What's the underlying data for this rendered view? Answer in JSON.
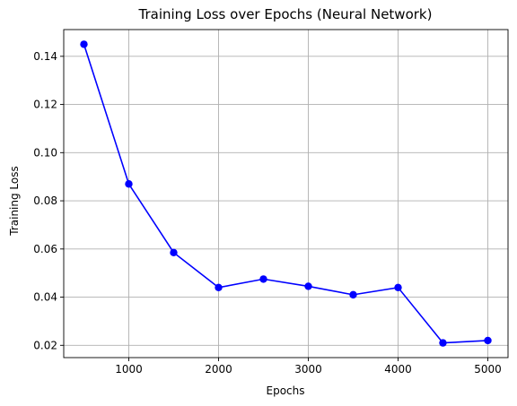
{
  "chart_data": {
    "type": "line",
    "title": "Training Loss over Epochs (Neural Network)",
    "xlabel": "Epochs",
    "ylabel": "Training Loss",
    "x": [
      500,
      1000,
      1500,
      2000,
      2500,
      3000,
      3500,
      4000,
      4500,
      5000
    ],
    "series": [
      {
        "values": [
          0.145,
          0.087,
          0.0585,
          0.044,
          0.0475,
          0.0445,
          0.041,
          0.044,
          0.021,
          0.022
        ],
        "color": "#0000ff",
        "marker": "circle"
      }
    ],
    "xlim": [
      275,
      5225
    ],
    "ylim": [
      0.0149,
      0.1511
    ],
    "xticks": [
      1000,
      2000,
      3000,
      4000,
      5000
    ],
    "xtick_labels": [
      "1000",
      "2000",
      "3000",
      "4000",
      "5000"
    ],
    "yticks": [
      0.02,
      0.04,
      0.06,
      0.08,
      0.1,
      0.12,
      0.14
    ],
    "ytick_labels": [
      "0.02",
      "0.04",
      "0.06",
      "0.08",
      "0.10",
      "0.12",
      "0.14"
    ],
    "grid": true,
    "legend": "none"
  }
}
